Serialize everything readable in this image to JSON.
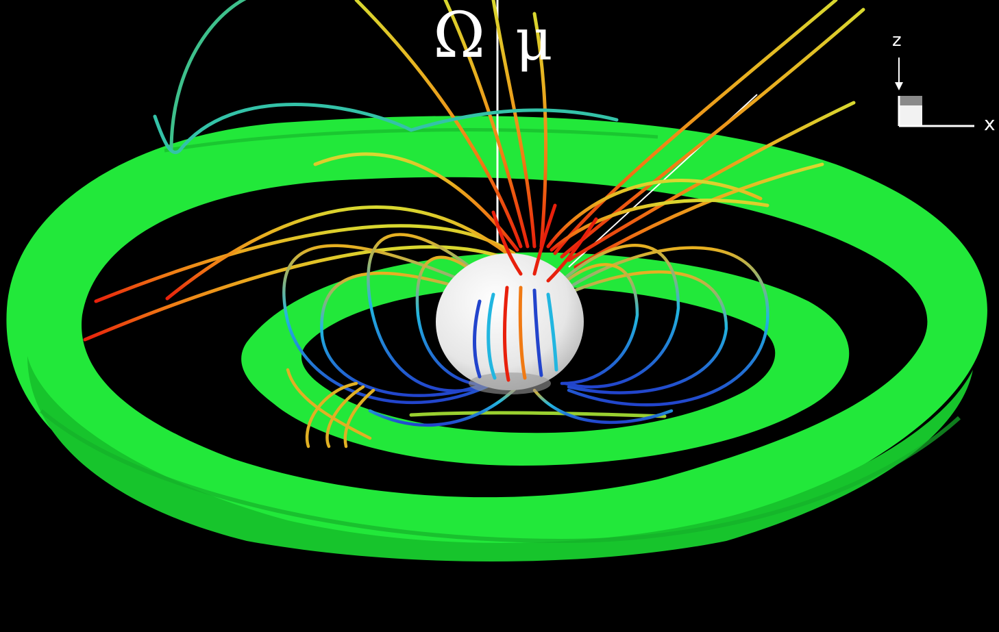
{
  "labels": {
    "omega": "Ω",
    "mu": "μ",
    "axis_z": "z",
    "axis_x": "x"
  },
  "colors": {
    "background": "#000000",
    "disk": "#22e83a",
    "disk_shade": "#17c42c",
    "star": "#f2f2f2",
    "axis": "#ffffff",
    "field_hot": "#e8200c",
    "field_warm": "#f0a41a",
    "field_mid": "#d9d830",
    "field_cool": "#22b6e0",
    "field_cold": "#2244cc"
  },
  "icons": {
    "axes_triad": "z-x-axes-icon"
  }
}
